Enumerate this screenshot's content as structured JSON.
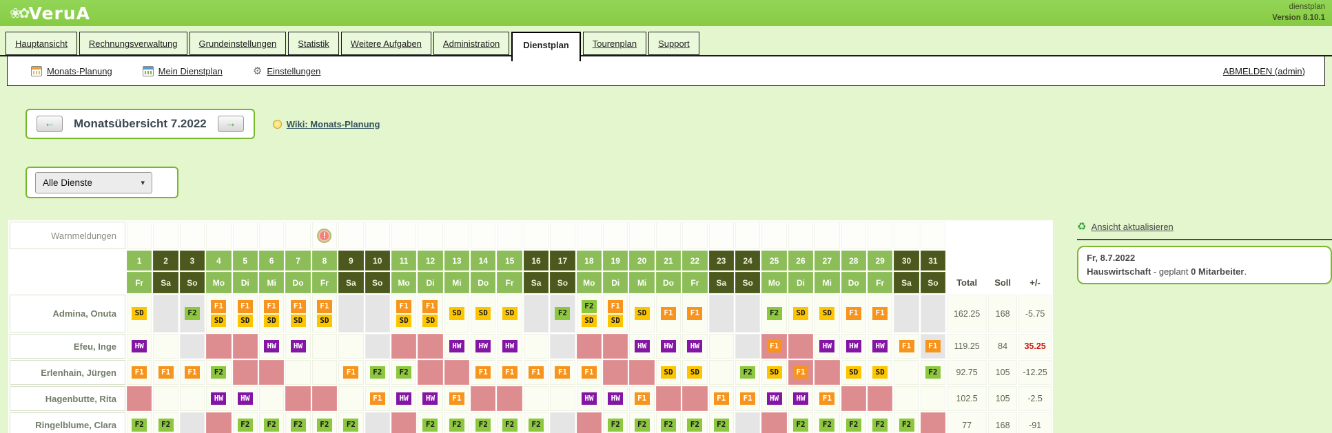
{
  "app": {
    "logo_text": "VeruA",
    "product": "dienstplan",
    "version": "Version 8.10.1"
  },
  "tabs": [
    {
      "label": "Hauptansicht",
      "active": false
    },
    {
      "label": "Rechnungsverwaltung",
      "active": false
    },
    {
      "label": "Grundeinstellungen",
      "active": false
    },
    {
      "label": "Statistik",
      "active": false
    },
    {
      "label": "Weitere Aufgaben",
      "active": false
    },
    {
      "label": "Administration",
      "active": false
    },
    {
      "label": "Dienstplan",
      "active": true
    },
    {
      "label": "Tourenplan",
      "active": false
    },
    {
      "label": "Support",
      "active": false
    }
  ],
  "subnav": {
    "items": [
      {
        "label": "Monats-Planung",
        "icon": "calendar-month-icon"
      },
      {
        "label": "Mein Dienstplan",
        "icon": "calendar-personal-icon"
      },
      {
        "label": "Einstellungen",
        "icon": "gear-icon"
      }
    ],
    "logout_label": "ABMELDEN (admin)"
  },
  "month_nav": {
    "title": "Monatsübersicht 7.2022",
    "prev_glyph": "←",
    "next_glyph": "→",
    "wiki_label": "Wiki: Monats-Planung"
  },
  "filter": {
    "selected_option": "Alle Dienste"
  },
  "roster": {
    "warn_label": "Warnmeldungen",
    "warning_day": 8,
    "warning_glyph": "!",
    "summary_headers": [
      "Total",
      "Soll",
      "+/-"
    ],
    "days": [
      {
        "n": "1",
        "wd": "Fr",
        "we": false
      },
      {
        "n": "2",
        "wd": "Sa",
        "we": true
      },
      {
        "n": "3",
        "wd": "So",
        "we": true
      },
      {
        "n": "4",
        "wd": "Mo",
        "we": false
      },
      {
        "n": "5",
        "wd": "Di",
        "we": false
      },
      {
        "n": "6",
        "wd": "Mi",
        "we": false
      },
      {
        "n": "7",
        "wd": "Do",
        "we": false
      },
      {
        "n": "8",
        "wd": "Fr",
        "we": false
      },
      {
        "n": "9",
        "wd": "Sa",
        "we": true
      },
      {
        "n": "10",
        "wd": "So",
        "we": true
      },
      {
        "n": "11",
        "wd": "Mo",
        "we": false
      },
      {
        "n": "12",
        "wd": "Di",
        "we": false
      },
      {
        "n": "13",
        "wd": "Mi",
        "we": false
      },
      {
        "n": "14",
        "wd": "Do",
        "we": false
      },
      {
        "n": "15",
        "wd": "Fr",
        "we": false
      },
      {
        "n": "16",
        "wd": "Sa",
        "we": true
      },
      {
        "n": "17",
        "wd": "So",
        "we": true
      },
      {
        "n": "18",
        "wd": "Mo",
        "we": false
      },
      {
        "n": "19",
        "wd": "Di",
        "we": false
      },
      {
        "n": "20",
        "wd": "Mi",
        "we": false
      },
      {
        "n": "21",
        "wd": "Do",
        "we": false
      },
      {
        "n": "22",
        "wd": "Fr",
        "we": false
      },
      {
        "n": "23",
        "wd": "Sa",
        "we": true
      },
      {
        "n": "24",
        "wd": "So",
        "we": true
      },
      {
        "n": "25",
        "wd": "Mo",
        "we": false
      },
      {
        "n": "26",
        "wd": "Di",
        "we": false
      },
      {
        "n": "27",
        "wd": "Mi",
        "we": false
      },
      {
        "n": "28",
        "wd": "Do",
        "we": false
      },
      {
        "n": "29",
        "wd": "Fr",
        "we": false
      },
      {
        "n": "30",
        "wd": "Sa",
        "we": true
      },
      {
        "n": "31",
        "wd": "So",
        "we": true
      }
    ],
    "shift_colors": {
      "SD": {
        "bg": "#FDC500",
        "fg": "#1A1A1A"
      },
      "F1": {
        "bg": "#F7941D",
        "fg": "#FFFFFF"
      },
      "F2": {
        "bg": "#8DC63F",
        "fg": "#1A1A1A"
      },
      "HW": {
        "bg": "#8316A5",
        "fg": "#FFFFFF"
      }
    },
    "absence_color": "#DD8D8F",
    "free_day_color": "#E5E5E5",
    "employees": [
      {
        "name": "Admina, Onuta",
        "total": "162.25",
        "soll": "168",
        "diff": "-5.75",
        "diff_red": false,
        "cells": [
          "SD",
          "G",
          "F2@G",
          "F1+SD",
          "F1+SD",
          "F1+SD",
          "F1+SD",
          "F1+SD",
          "G",
          "G",
          "F1+SD",
          "F1+SD",
          "SD",
          "SD",
          "SD",
          "G",
          "F2@G",
          "F2+SD",
          "F1+SD",
          "SD",
          "F1",
          "F1",
          "G",
          "G",
          "F2",
          "SD",
          "SD",
          "F1",
          "F1",
          "G",
          "G"
        ]
      },
      {
        "name": "Efeu, Inge",
        "total": "119.25",
        "soll": "84",
        "diff": "35.25",
        "diff_red": true,
        "cells": [
          "HW",
          "",
          "G",
          "PK",
          "PK",
          "HW",
          "HW",
          "",
          "",
          "G",
          "PK",
          "PK",
          "HW",
          "HW",
          "HW",
          "",
          "G",
          "PK",
          "PK",
          "HW",
          "HW",
          "HW",
          "",
          "G",
          "F1@PK",
          "PK",
          "HW",
          "HW",
          "HW",
          "F1",
          "F1@G"
        ]
      },
      {
        "name": "Erlenhain, Jürgen",
        "total": "92.75",
        "soll": "105",
        "diff": "-12.25",
        "diff_red": false,
        "cells": [
          "F1",
          "F1",
          "F1",
          "F2",
          "PK",
          "PK",
          "",
          "",
          "F1",
          "F2",
          "F2",
          "PK",
          "PK",
          "F1",
          "F1",
          "F1",
          "F1",
          "F1",
          "PK",
          "PK",
          "SD",
          "SD",
          "",
          "F2",
          "SD",
          "F1@PK",
          "PK",
          "SD",
          "SD",
          "",
          "F2"
        ]
      },
      {
        "name": "Hagenbutte, Rita",
        "total": "102.5",
        "soll": "105",
        "diff": "-2.5",
        "diff_red": false,
        "cells": [
          "PK",
          "",
          "",
          "HW",
          "HW",
          "",
          "PK",
          "PK",
          "",
          "F1",
          "HW",
          "HW",
          "F1",
          "PK",
          "PK",
          "",
          "",
          "HW",
          "HW",
          "F1",
          "PK",
          "PK",
          "F1",
          "F1",
          "HW",
          "HW",
          "F1",
          "PK",
          "PK",
          "",
          ""
        ]
      },
      {
        "name": "Ringelblume, Clara",
        "total": "77",
        "soll": "168",
        "diff": "-91",
        "diff_red": false,
        "cells": [
          "F2",
          "F2",
          "G",
          "PK",
          "F2",
          "F2",
          "F2",
          "F2",
          "F2",
          "G",
          "PK",
          "F2",
          "F2",
          "F2",
          "F2",
          "F2",
          "G",
          "PK",
          "F2",
          "F2",
          "F2",
          "F2",
          "F2",
          "G",
          "PK",
          "F2",
          "F2",
          "F2",
          "F2",
          "F2",
          "PK"
        ]
      }
    ]
  },
  "side_panel": {
    "refresh_label": "Ansicht aktualisieren",
    "info": {
      "date": "Fr, 8.7.2022",
      "service": "Hauswirtschaft",
      "mid": " - geplant ",
      "count": "0 Mitarbeiter",
      "end": "."
    }
  }
}
